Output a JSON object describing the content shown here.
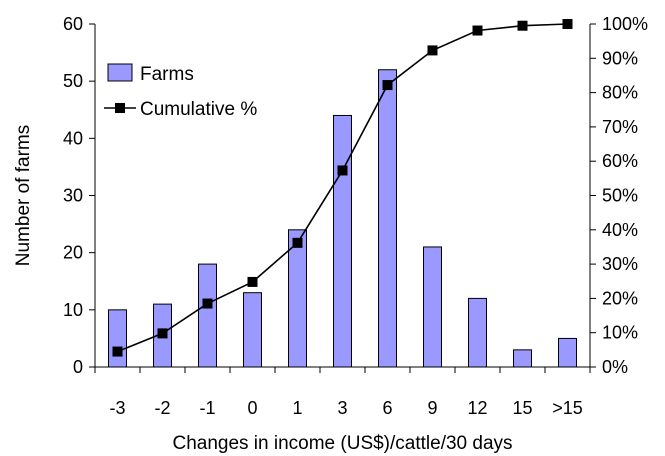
{
  "chart_data": {
    "type": "bar",
    "categories": [
      "-3",
      "-2",
      "-1",
      "0",
      "1",
      "3",
      "6",
      "9",
      "12",
      "15",
      ">15"
    ],
    "series": [
      {
        "name": "Farms",
        "type": "bar",
        "axis": "left",
        "color": "#9999ff",
        "values": [
          10,
          11,
          18,
          13,
          24,
          44,
          52,
          21,
          12,
          3,
          5
        ]
      },
      {
        "name": "Cumulative %",
        "type": "line",
        "axis": "right",
        "color": "#000000",
        "marker": "square",
        "values": [
          4.5,
          9.8,
          18.5,
          24.8,
          36.2,
          57.3,
          82.2,
          92.3,
          98.1,
          99.5,
          100
        ]
      }
    ],
    "xlabel": "Changes in income (US$)/cattle/30 days",
    "ylabel": "Number of farms",
    "ylim": [
      0,
      60
    ],
    "yticks": [
      "0",
      "10",
      "20",
      "30",
      "40",
      "50",
      "60"
    ],
    "y2lim": [
      0,
      100
    ],
    "y2ticks": [
      "0%",
      "10%",
      "20%",
      "30%",
      "40%",
      "50%",
      "60%",
      "70%",
      "80%",
      "90%",
      "100%"
    ],
    "legend_position": "top-left",
    "grid": false
  }
}
